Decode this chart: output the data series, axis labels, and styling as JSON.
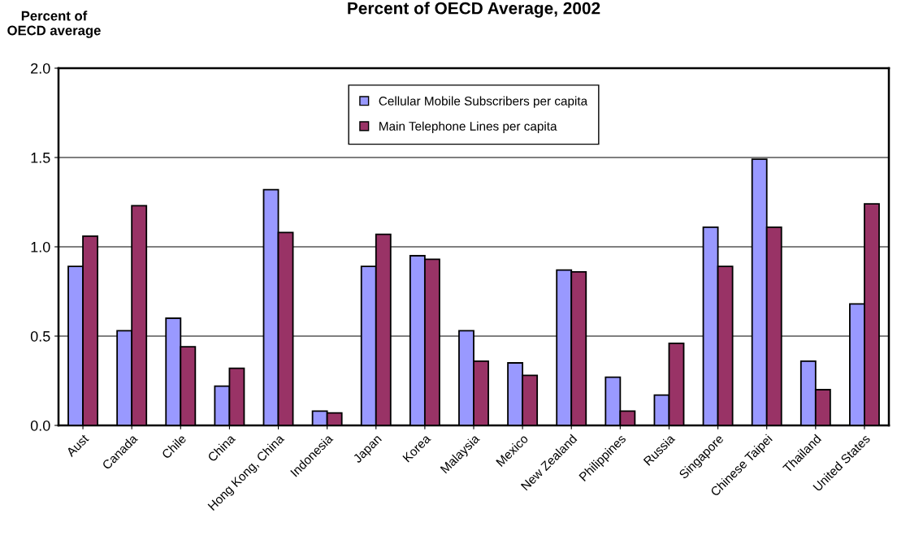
{
  "chart_data": {
    "type": "bar",
    "title": "Percent of OECD Average, 2002",
    "ylabel": "Percent of OECD average",
    "categories": [
      "Aust",
      "Canada",
      "Chile",
      "China",
      "Hong Kong, China",
      "Indonesia",
      "Japan",
      "Korea",
      "Malaysia",
      "Mexico",
      "New Zealand",
      "Philippines",
      "Russia",
      "Singapore",
      "Chinese Taipei",
      "Thailand",
      "United States"
    ],
    "series": [
      {
        "name": "Cellular Mobile Subscribers per capita",
        "color": "#9999ff",
        "values": [
          0.89,
          0.53,
          0.6,
          0.22,
          1.32,
          0.08,
          0.89,
          0.95,
          0.53,
          0.35,
          0.87,
          0.27,
          0.17,
          1.11,
          1.49,
          0.36,
          0.68
        ]
      },
      {
        "name": "Main Telephone Lines per capita",
        "color": "#993366",
        "values": [
          1.06,
          1.23,
          0.44,
          0.32,
          1.08,
          0.07,
          1.07,
          0.93,
          0.36,
          0.28,
          0.86,
          0.08,
          0.46,
          0.89,
          1.11,
          0.2,
          1.24
        ]
      }
    ],
    "ylim": [
      0,
      2
    ],
    "yticks": [
      {
        "value": 0,
        "label": "0.0"
      },
      {
        "value": 0.5,
        "label": "0.5"
      },
      {
        "value": 1,
        "label": "1.0"
      },
      {
        "value": 1.5,
        "label": "1.5"
      },
      {
        "value": 2,
        "label": "2.0"
      }
    ],
    "grid": "y",
    "legend": "top"
  }
}
